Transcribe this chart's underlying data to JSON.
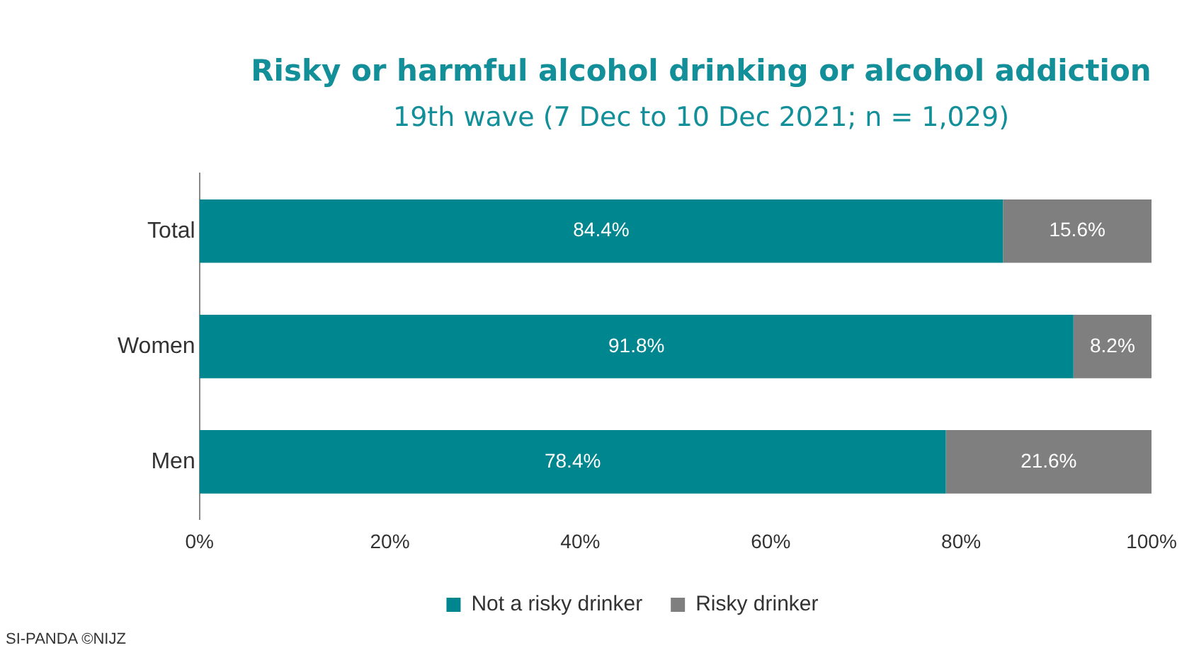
{
  "chart_data": {
    "type": "bar",
    "orientation": "horizontal",
    "stacked": true,
    "title": "Risky or harmful alcohol drinking or alcohol addiction",
    "subtitle": "19th wave (7 Dec to 10 Dec 2021; n = 1,029)",
    "categories": [
      "Total",
      "Women",
      "Men"
    ],
    "series": [
      {
        "name": "Not a risky drinker",
        "color": "#00868f",
        "values": [
          84.4,
          91.8,
          78.4
        ],
        "value_labels": [
          "84.4%",
          "91.8%",
          "78.4%"
        ]
      },
      {
        "name": "Risky drinker",
        "color": "#7f7f7f",
        "values": [
          15.6,
          8.2,
          21.6
        ],
        "value_labels": [
          "15.6%",
          "8.2%",
          "21.6%"
        ]
      }
    ],
    "xlim": [
      0,
      100
    ],
    "xticks": [
      {
        "value": 0,
        "label": "0%"
      },
      {
        "value": 20,
        "label": "20%"
      },
      {
        "value": 40,
        "label": "40%"
      },
      {
        "value": 60,
        "label": "60%"
      },
      {
        "value": 80,
        "label": "80%"
      },
      {
        "value": 100,
        "label": "100%"
      }
    ],
    "grid": false,
    "legend": "bottom",
    "annotations": [
      "SI-PANDA ©NIJZ"
    ]
  }
}
